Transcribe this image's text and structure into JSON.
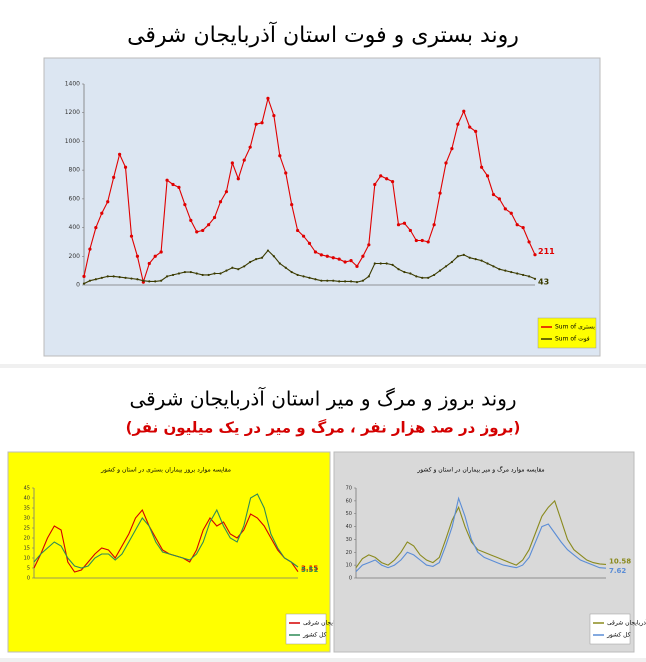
{
  "section2": {
    "title": "روند بروز و مرگ و میر استان آذربایجان شرقی",
    "subtitle": "(بروز در صد هزار نفر ، مرگ و میر در یک میلیون نفر)"
  },
  "chart_data": [
    {
      "type": "line",
      "title": "روند بستری و فوت استان آذربایجان شرقی",
      "background": "#dce6f2",
      "markers": true,
      "grid": false,
      "legend": "lower right",
      "legend_background": "#ffff00",
      "ylim": [
        0,
        1400
      ],
      "yticks": [
        0,
        200,
        400,
        600,
        800,
        1000,
        1200,
        1400
      ],
      "series": [
        {
          "name": "Sum of بستری",
          "color": "#e00000",
          "values": [
            60,
            250,
            400,
            500,
            580,
            750,
            910,
            820,
            340,
            200,
            20,
            150,
            200,
            230,
            730,
            700,
            680,
            560,
            450,
            370,
            380,
            420,
            470,
            580,
            650,
            850,
            740,
            870,
            960,
            1120,
            1130,
            1300,
            1180,
            900,
            780,
            560,
            380,
            340,
            290,
            230,
            210,
            200,
            190,
            180,
            160,
            170,
            130,
            200,
            280,
            700,
            760,
            740,
            720,
            420,
            430,
            380,
            310,
            310,
            300,
            420,
            640,
            850,
            950,
            1120,
            1210,
            1100,
            1070,
            820,
            760,
            630,
            600,
            530,
            500,
            420,
            400,
            300,
            211
          ]
        },
        {
          "name": "Sum of فوت",
          "color": "#3b3b00",
          "values": [
            10,
            30,
            40,
            50,
            60,
            60,
            55,
            50,
            45,
            40,
            30,
            25,
            25,
            30,
            60,
            70,
            80,
            90,
            90,
            80,
            70,
            70,
            80,
            80,
            100,
            120,
            110,
            130,
            160,
            180,
            190,
            240,
            200,
            150,
            120,
            90,
            70,
            60,
            50,
            40,
            30,
            30,
            30,
            25,
            25,
            25,
            20,
            30,
            60,
            150,
            150,
            150,
            140,
            110,
            90,
            80,
            60,
            50,
            50,
            70,
            100,
            130,
            160,
            200,
            210,
            190,
            180,
            170,
            150,
            130,
            110,
            100,
            90,
            80,
            70,
            60,
            43
          ]
        }
      ]
    },
    {
      "type": "line",
      "title": "مقایسه موارد بروز بیماران بستری در استان و کشور",
      "background": "#ffff00",
      "markers": false,
      "grid": false,
      "legend": "lower right",
      "legend_background": "#ffffff",
      "ylim": [
        0,
        45
      ],
      "yticks": [
        0,
        5,
        10,
        15,
        20,
        25,
        30,
        35,
        40,
        45
      ],
      "series": [
        {
          "name": "آذربایجان شرقی",
          "color": "#d40000",
          "values": [
            5,
            12,
            20,
            26,
            24,
            8,
            3,
            4,
            8,
            12,
            15,
            14,
            10,
            16,
            22,
            30,
            34,
            26,
            20,
            14,
            12,
            11,
            10,
            8,
            14,
            24,
            30,
            26,
            28,
            22,
            20,
            24,
            32,
            30,
            26,
            20,
            14,
            10,
            8,
            3.15
          ]
        },
        {
          "name": "کل کشور",
          "color": "#2e8b57",
          "values": [
            8,
            12,
            15,
            18,
            16,
            10,
            6,
            5,
            6,
            10,
            12,
            12,
            9,
            12,
            18,
            24,
            30,
            26,
            18,
            13,
            12,
            11,
            10,
            9,
            12,
            18,
            28,
            34,
            26,
            20,
            18,
            26,
            40,
            42,
            35,
            22,
            15,
            10,
            8,
            5.51
          ]
        }
      ]
    },
    {
      "type": "line",
      "title": "مقایسه موارد مرگ و میر بیماران در استان و کشور",
      "background": "#d9d9d9",
      "markers": false,
      "grid": false,
      "legend": "lower right",
      "legend_background": "#ffffff",
      "ylim": [
        0,
        70
      ],
      "yticks": [
        0,
        10,
        20,
        30,
        40,
        50,
        60,
        70
      ],
      "series": [
        {
          "name": "آذربایجان شرقی",
          "color": "#8a8a1e",
          "values": [
            8,
            15,
            18,
            16,
            12,
            10,
            14,
            20,
            28,
            25,
            18,
            14,
            12,
            16,
            30,
            45,
            55,
            40,
            28,
            22,
            20,
            18,
            16,
            14,
            12,
            10,
            14,
            22,
            35,
            48,
            55,
            60,
            45,
            30,
            22,
            18,
            14,
            12,
            11,
            10.58
          ]
        },
        {
          "name": "کل کشور",
          "color": "#5b8dd6",
          "values": [
            5,
            10,
            12,
            14,
            10,
            8,
            10,
            14,
            20,
            18,
            14,
            10,
            9,
            12,
            25,
            40,
            62,
            48,
            30,
            20,
            16,
            14,
            12,
            10,
            9,
            8,
            10,
            16,
            28,
            40,
            42,
            35,
            28,
            22,
            18,
            14,
            12,
            10,
            8,
            7.62
          ]
        }
      ]
    }
  ]
}
